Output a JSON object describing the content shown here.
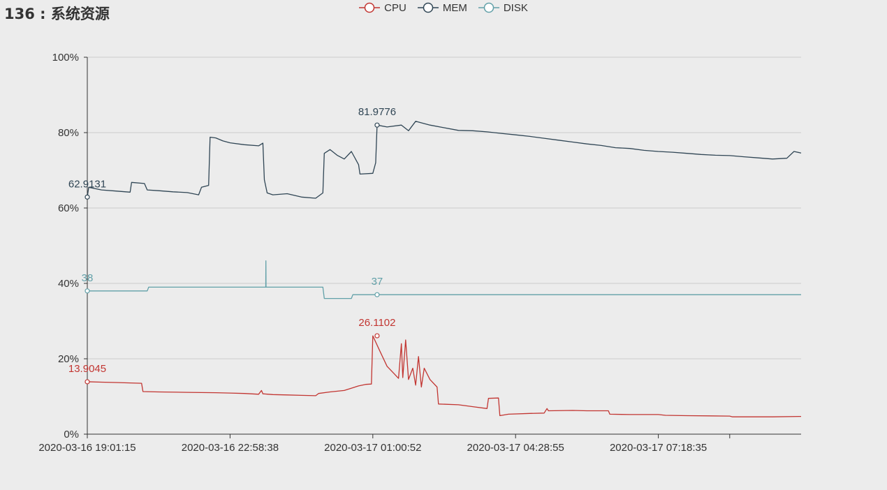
{
  "page": {
    "title": "136 : 系统资源"
  },
  "legend": [
    {
      "name": "CPU",
      "color": "#c23531"
    },
    {
      "name": "MEM",
      "color": "#2f4554"
    },
    {
      "name": "DISK",
      "color": "#61a0a8"
    }
  ],
  "chart_data": {
    "type": "line",
    "title": "136 : 系统资源",
    "ylim": [
      0,
      100
    ],
    "y_ticks": [
      "0%",
      "20%",
      "40%",
      "60%",
      "80%",
      "100%"
    ],
    "xlim": [
      0,
      50
    ],
    "x_tick_labels": [
      {
        "t": 0,
        "label": "2020-03-16 19:01:15"
      },
      {
        "t": 10,
        "label": "2020-03-16 22:58:38"
      },
      {
        "t": 20,
        "label": "2020-03-17 01:00:52"
      },
      {
        "t": 30,
        "label": "2020-03-17 04:28:55"
      },
      {
        "t": 40,
        "label": "2020-03-17 07:18:35"
      },
      {
        "t": 45,
        "label": ""
      }
    ],
    "grid": true,
    "legend_position": "top-center",
    "series": [
      {
        "name": "CPU",
        "color": "#c23531",
        "points": [
          [
            0,
            13.9
          ],
          [
            1,
            13.8
          ],
          [
            2,
            13.7
          ],
          [
            3,
            13.6
          ],
          [
            3.8,
            13.5
          ],
          [
            3.9,
            11.3
          ],
          [
            5,
            11.2
          ],
          [
            7,
            11.1
          ],
          [
            9,
            11.0
          ],
          [
            10,
            10.9
          ],
          [
            11,
            10.8
          ],
          [
            12,
            10.6
          ],
          [
            12.2,
            11.6
          ],
          [
            12.3,
            10.7
          ],
          [
            13,
            10.5
          ],
          [
            14,
            10.4
          ],
          [
            15,
            10.3
          ],
          [
            16,
            10.2
          ],
          [
            16.2,
            10.8
          ],
          [
            17,
            11.2
          ],
          [
            18,
            11.6
          ],
          [
            19,
            12.8
          ],
          [
            19.5,
            13.2
          ],
          [
            19.9,
            13.3
          ],
          [
            20.0,
            26.1
          ],
          [
            20.5,
            22.0
          ],
          [
            21.0,
            18.0
          ],
          [
            21.5,
            16.0
          ],
          [
            21.8,
            14.8
          ],
          [
            22.0,
            24.0
          ],
          [
            22.1,
            15.0
          ],
          [
            22.3,
            25.0
          ],
          [
            22.5,
            14.5
          ],
          [
            22.8,
            17.5
          ],
          [
            23.0,
            13.0
          ],
          [
            23.2,
            20.6
          ],
          [
            23.4,
            12.5
          ],
          [
            23.6,
            17.5
          ],
          [
            24.0,
            14.5
          ],
          [
            24.5,
            12.5
          ],
          [
            24.6,
            8.0
          ],
          [
            26,
            7.8
          ],
          [
            27,
            7.3
          ],
          [
            28.0,
            6.8
          ],
          [
            28.1,
            9.5
          ],
          [
            28.8,
            9.6
          ],
          [
            28.9,
            4.9
          ],
          [
            29.5,
            5.3
          ],
          [
            31,
            5.5
          ],
          [
            32,
            5.6
          ],
          [
            32.2,
            6.8
          ],
          [
            32.3,
            6.2
          ],
          [
            34,
            6.3
          ],
          [
            35,
            6.2
          ],
          [
            36.5,
            6.2
          ],
          [
            36.6,
            5.3
          ],
          [
            38,
            5.2
          ],
          [
            40,
            5.2
          ],
          [
            40.5,
            5.0
          ],
          [
            42,
            4.9
          ],
          [
            45,
            4.8
          ],
          [
            45.2,
            4.6
          ],
          [
            48,
            4.6
          ],
          [
            50,
            4.7
          ]
        ]
      },
      {
        "name": "MEM",
        "color": "#2f4554",
        "points": [
          [
            0,
            62.9
          ],
          [
            0.1,
            65.5
          ],
          [
            1,
            64.8
          ],
          [
            2,
            64.5
          ],
          [
            3,
            64.2
          ],
          [
            3.1,
            66.8
          ],
          [
            4,
            66.5
          ],
          [
            4.2,
            64.8
          ],
          [
            5,
            64.6
          ],
          [
            6,
            64.3
          ],
          [
            7,
            64.1
          ],
          [
            7.8,
            63.5
          ],
          [
            8.0,
            65.5
          ],
          [
            8.5,
            66.0
          ],
          [
            8.6,
            78.8
          ],
          [
            9,
            78.6
          ],
          [
            9.5,
            77.8
          ],
          [
            10,
            77.3
          ],
          [
            11,
            76.8
          ],
          [
            12,
            76.5
          ],
          [
            12.3,
            77.2
          ],
          [
            12.4,
            67.5
          ],
          [
            12.6,
            64.0
          ],
          [
            13,
            63.5
          ],
          [
            14,
            63.8
          ],
          [
            15,
            62.9
          ],
          [
            16,
            62.6
          ],
          [
            16.5,
            64.0
          ],
          [
            16.6,
            74.5
          ],
          [
            17,
            75.5
          ],
          [
            17.5,
            74.0
          ],
          [
            18,
            73.0
          ],
          [
            18.5,
            75.0
          ],
          [
            19,
            71.5
          ],
          [
            19.1,
            69.0
          ],
          [
            20,
            69.2
          ],
          [
            20.2,
            72.0
          ],
          [
            20.3,
            82.0
          ],
          [
            21,
            81.5
          ],
          [
            22,
            82.0
          ],
          [
            22.5,
            80.5
          ],
          [
            23,
            83.0
          ],
          [
            23.5,
            82.5
          ],
          [
            24,
            82.0
          ],
          [
            25,
            81.3
          ],
          [
            26,
            80.6
          ],
          [
            27,
            80.5
          ],
          [
            28,
            80.2
          ],
          [
            29,
            79.8
          ],
          [
            30,
            79.4
          ],
          [
            31,
            79.0
          ],
          [
            32,
            78.5
          ],
          [
            33,
            78.0
          ],
          [
            34,
            77.5
          ],
          [
            35,
            77.0
          ],
          [
            36,
            76.6
          ],
          [
            37,
            76.0
          ],
          [
            38,
            75.8
          ],
          [
            39,
            75.3
          ],
          [
            40,
            75.0
          ],
          [
            41,
            74.8
          ],
          [
            42,
            74.5
          ],
          [
            43,
            74.2
          ],
          [
            44,
            74.0
          ],
          [
            45,
            73.9
          ],
          [
            46,
            73.6
          ],
          [
            47,
            73.3
          ],
          [
            48,
            73.0
          ],
          [
            49,
            73.2
          ],
          [
            49.5,
            75.0
          ],
          [
            50,
            74.6
          ]
        ]
      },
      {
        "name": "DISK",
        "color": "#61a0a8",
        "points": [
          [
            0,
            38
          ],
          [
            4.2,
            38
          ],
          [
            4.3,
            39
          ],
          [
            12.5,
            39
          ],
          [
            12.51,
            46
          ],
          [
            12.52,
            39
          ],
          [
            16.5,
            39
          ],
          [
            16.6,
            36
          ],
          [
            18.5,
            36
          ],
          [
            18.6,
            37
          ],
          [
            20,
            37
          ],
          [
            50,
            37
          ]
        ]
      }
    ],
    "annotations": [
      {
        "series": "MEM",
        "x": 0,
        "y": 62.9,
        "label": "62.9131"
      },
      {
        "series": "MEM",
        "x": 20.3,
        "y": 82.0,
        "label": "81.9776"
      },
      {
        "series": "DISK",
        "x": 0,
        "y": 38,
        "label": "38"
      },
      {
        "series": "DISK",
        "x": 20.3,
        "y": 37,
        "label": "37"
      },
      {
        "series": "CPU",
        "x": 0,
        "y": 13.9,
        "label": "13.9045"
      },
      {
        "series": "CPU",
        "x": 20.3,
        "y": 26.1,
        "label": "26.1102"
      }
    ]
  }
}
